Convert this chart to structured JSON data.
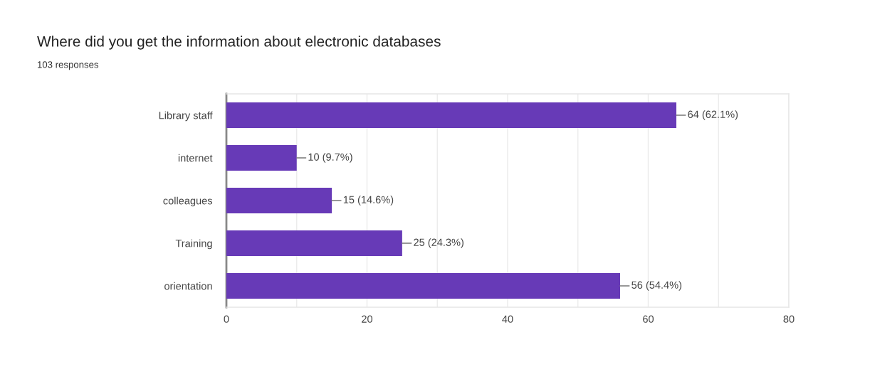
{
  "chart_data": {
    "type": "bar",
    "orientation": "horizontal",
    "title": "Where did you get the information about electronic databases",
    "subtitle": "103 responses",
    "categories": [
      "Library staff",
      "internet",
      "colleagues",
      "Training",
      "orientation"
    ],
    "values": [
      64,
      10,
      15,
      25,
      56
    ],
    "color": "#673ab7",
    "value_labels": [
      "64 (62.1%)",
      "10 (9.7%)",
      "15 (14.6%)",
      "25 (24.3%)",
      "56 (54.4%)"
    ],
    "xlim": [
      0,
      80
    ],
    "xticks": [
      0,
      {
        "value": 10,
        "label": null
      },
      20,
      {
        "value": 30,
        "label": null
      },
      40,
      {
        "value": 50,
        "label": null
      },
      60,
      {
        "value": 70,
        "label": null
      },
      80
    ],
    "grid": "x"
  }
}
